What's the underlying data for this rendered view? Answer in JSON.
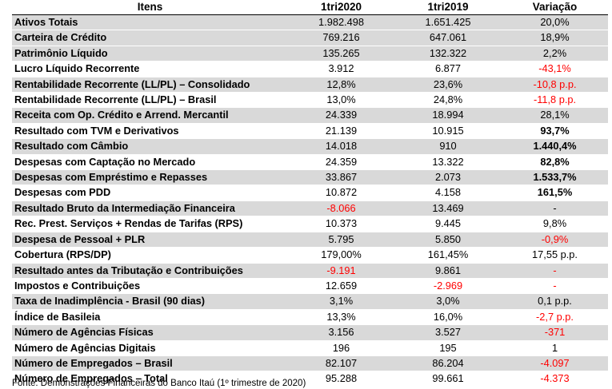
{
  "table": {
    "headers": [
      "Itens",
      "1tri2020",
      "1tri2019",
      "Variação"
    ],
    "rows": [
      {
        "item": "Ativos Totais",
        "v2020": "1.982.498",
        "v2019": "1.651.425",
        "var": "20,0%",
        "shade": true
      },
      {
        "item": "Carteira de Crédito",
        "v2020": "769.216",
        "v2019": "647.061",
        "var": "18,9%",
        "shade": true
      },
      {
        "item": "Patrimônio Líquido",
        "v2020": "135.265",
        "v2019": "132.322",
        "var": "2,2%",
        "shade": true
      },
      {
        "item": "Lucro Líquido Recorrente",
        "v2020": "3.912",
        "v2019": "6.877",
        "var": "-43,1%",
        "var_neg": true
      },
      {
        "item": "Rentabilidade Recorrente (LL/PL) – Consolidado",
        "v2020": "12,8%",
        "v2019": "23,6%",
        "var": "-10,8 p.p.",
        "var_neg": true,
        "shade": true
      },
      {
        "item": "Rentabilidade Recorrente (LL/PL) – Brasil",
        "v2020": "13,0%",
        "v2019": "24,8%",
        "var": "-11,8 p.p.",
        "var_neg": true
      },
      {
        "item": "Receita com Op. Crédito e Arrend. Mercantil",
        "v2020": "24.339",
        "v2019": "18.994",
        "var": "28,1%",
        "shade": true
      },
      {
        "item": "Resultado com TVM e Derivativos",
        "v2020": "21.139",
        "v2019": "10.915",
        "var": "93,7%",
        "var_bold": true
      },
      {
        "item": "Resultado com Câmbio",
        "v2020": "14.018",
        "v2019": "910",
        "var": "1.440,4%",
        "var_bold": true,
        "shade": true
      },
      {
        "item": "Despesas com Captação no Mercado",
        "v2020": "24.359",
        "v2019": "13.322",
        "var": "82,8%",
        "var_bold": true
      },
      {
        "item": "Despesas com Empréstimo e Repasses",
        "v2020": "33.867",
        "v2019": "2.073",
        "var": "1.533,7%",
        "var_bold": true,
        "shade": true
      },
      {
        "item": "Despesas com PDD",
        "v2020": "10.872",
        "v2019": "4.158",
        "var": "161,5%",
        "var_bold": true
      },
      {
        "item": "Resultado Bruto da Intermediação Financeira",
        "v2020": "-8.066",
        "v2020_neg": true,
        "v2019": "13.469",
        "var": "-",
        "shade": true
      },
      {
        "item": "Rec. Prest. Serviços + Rendas de Tarifas (RPS)",
        "v2020": "10.373",
        "v2019": "9.445",
        "var": "9,8%"
      },
      {
        "item": "Despesa de Pessoal + PLR",
        "v2020": "5.795",
        "v2019": "5.850",
        "var": "-0,9%",
        "var_neg": true,
        "shade": true
      },
      {
        "item": "Cobertura (RPS/DP)",
        "v2020": "179,00%",
        "v2019": "161,45%",
        "var": "17,55 p.p."
      },
      {
        "item": "Resultado antes da Tributação e Contribuições",
        "v2020": "-9.191",
        "v2020_neg": true,
        "v2019": "9.861",
        "var": "-",
        "var_neg": true,
        "shade": true
      },
      {
        "item": "Impostos e Contribuições",
        "v2020": "12.659",
        "v2019": "-2.969",
        "v2019_neg": true,
        "var": "-",
        "var_neg": true
      },
      {
        "item": "Taxa de Inadimplência - Brasil (90 dias)",
        "v2020": "3,1%",
        "v2019": "3,0%",
        "var": "0,1 p.p.",
        "shade": true
      },
      {
        "item": "Índice de Basileia",
        "v2020": "13,3%",
        "v2019": "16,0%",
        "var": "-2,7 p.p.",
        "var_neg": true
      },
      {
        "item": "Número de Agências Físicas",
        "v2020": "3.156",
        "v2019": "3.527",
        "var": "-371",
        "var_neg": true,
        "shade": true
      },
      {
        "item": "Número de Agências Digitais",
        "v2020": "196",
        "v2019": "195",
        "var": "1"
      },
      {
        "item": "Número de Empregados – Brasil",
        "v2020": "82.107",
        "v2019": "86.204",
        "var": "-4.097",
        "var_neg": true,
        "shade": true
      },
      {
        "item": "Número de Empregados – Total",
        "v2020": "95.288",
        "v2019": "99.661",
        "var": "-4.373",
        "var_neg": true
      }
    ]
  },
  "footer": {
    "source": "Fonte: Demonstrações Financeiras do Banco Itaú (1º trimestre de 2020)"
  }
}
